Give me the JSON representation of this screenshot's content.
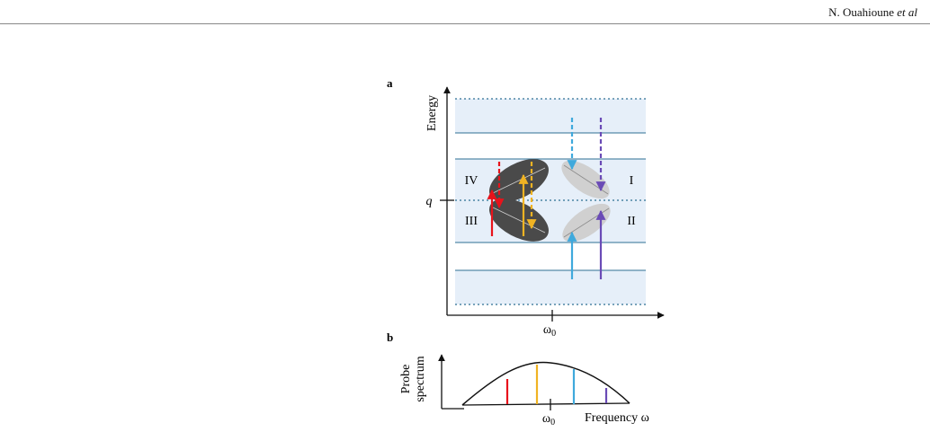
{
  "header": {
    "author": "N. Ouahioune",
    "etal": "et al"
  },
  "panel_a": {
    "label": "a",
    "ylabel": "Energy",
    "q_label": "q",
    "omega_label": "ω",
    "omega_sub": "0",
    "regions": [
      "IV",
      "I",
      "III",
      "II"
    ]
  },
  "panel_b": {
    "label": "b",
    "ylabel_line1": "Probe",
    "ylabel_line2": "spectrum",
    "omega_label": "ω",
    "omega_sub": "0",
    "xlabel": "Frequency ω"
  },
  "colors": {
    "red": "#e8131b",
    "yellow": "#f0b323",
    "blue": "#3fa9dc",
    "purple": "#6a4bb6",
    "band_fill": "#e6eff9",
    "level_line": "#2e6f93",
    "dark_ellipse": "#4a4a4a",
    "light_ellipse": "#d0d0d0"
  }
}
